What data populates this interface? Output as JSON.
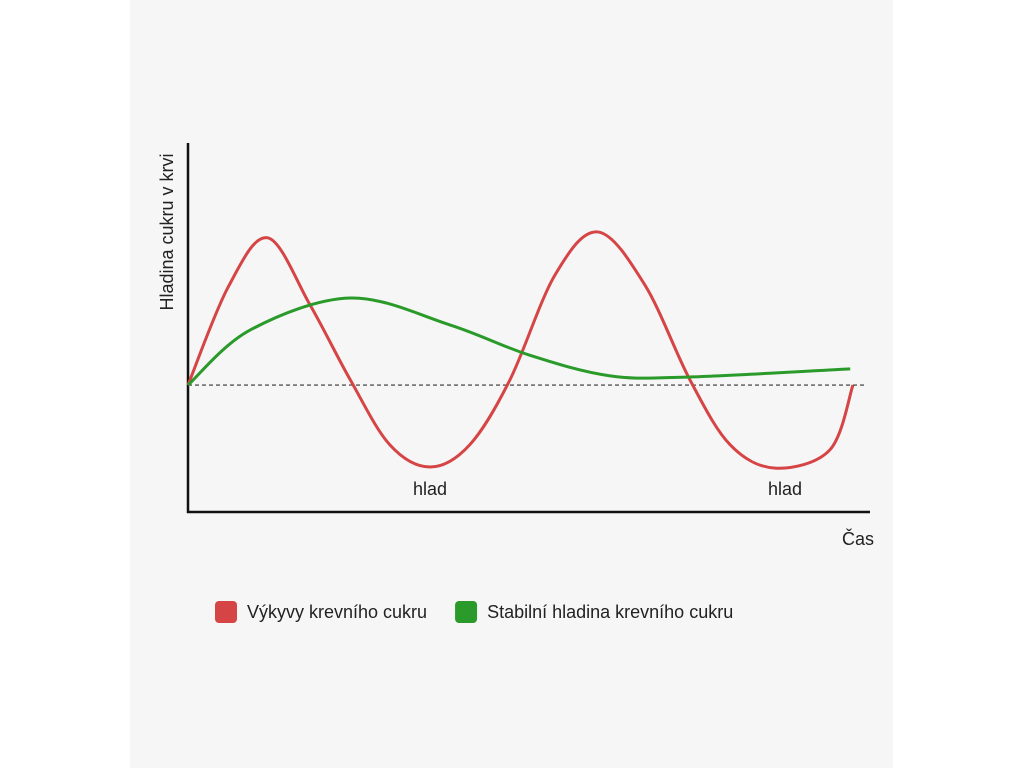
{
  "chart_data": {
    "type": "line",
    "y_label": "Hladina cukru v krvi",
    "x_label": "Čas",
    "xlim": [
      0,
      100
    ],
    "ylim": [
      0,
      100
    ],
    "reference_line": 34.4,
    "annotations": [
      "hlad",
      "hlad"
    ],
    "series": [
      {
        "name": "Výkyvy krevního cukru",
        "color": "#d64545",
        "x": [
          0,
          5.9,
          11.7,
          17.9,
          23.8,
          29.6,
          35.5,
          41.3,
          47.2,
          53.8,
          60.1,
          67.0,
          73.6,
          79.5,
          86.1,
          94.1,
          97.5
        ],
        "values": [
          34.4,
          61.0,
          74.3,
          56.1,
          35.8,
          18.2,
          12.2,
          18.2,
          35.8,
          64.2,
          75.9,
          61.5,
          35.8,
          18.2,
          11.9,
          16.8,
          34.4
        ]
      },
      {
        "name": "Stabilní hladina krevního cukru",
        "color": "#2a9a2a",
        "x": [
          0,
          9.1,
          23.8,
          38.4,
          50.1,
          61.9,
          73.6,
          97.1
        ],
        "values": [
          34.4,
          49.3,
          58.0,
          50.7,
          42.5,
          36.9,
          36.6,
          38.8
        ]
      }
    ]
  }
}
